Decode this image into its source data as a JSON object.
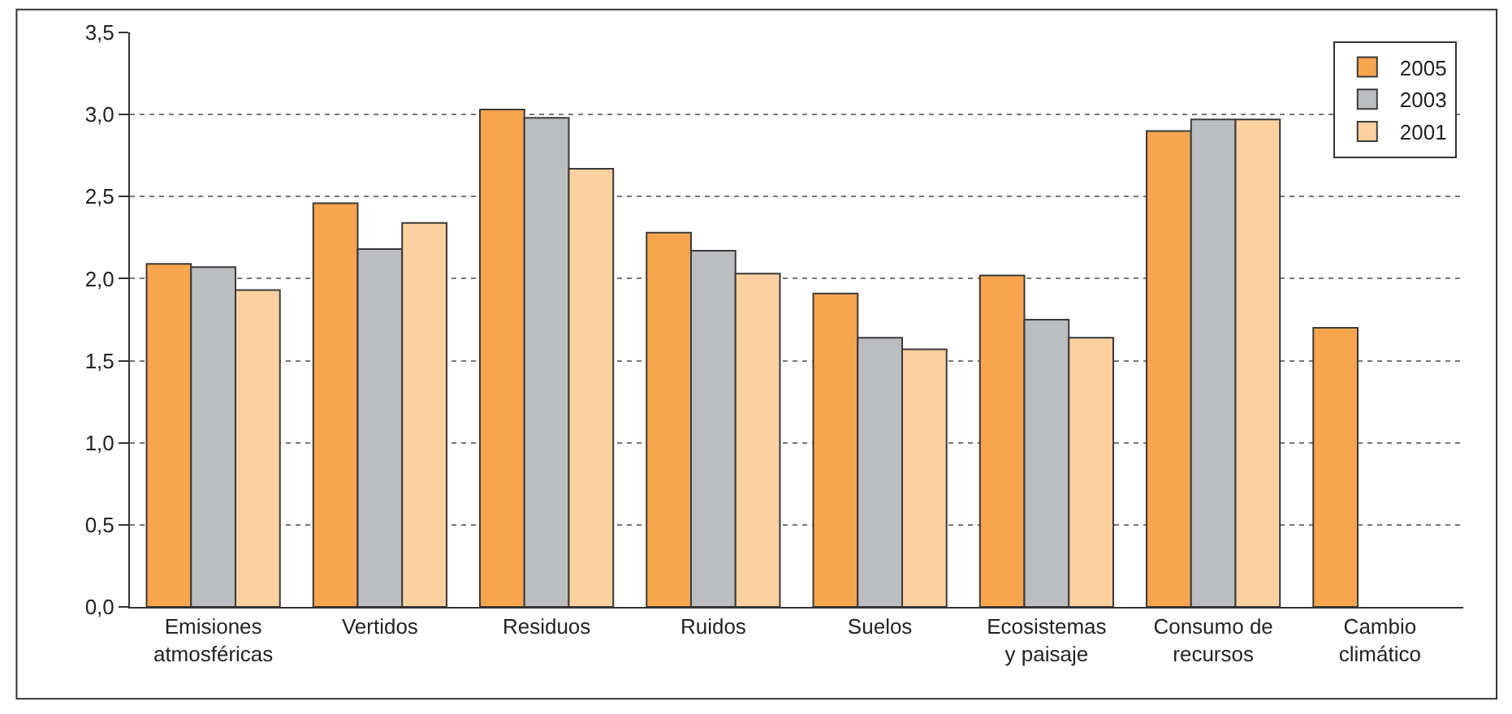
{
  "chart_data": {
    "type": "bar",
    "categories": [
      "Emisiones atmosféricas",
      "Vertidos",
      "Residuos",
      "Ruidos",
      "Suelos",
      "Ecosistemas y paisaje",
      "Consumo de recursos",
      "Cambio climático"
    ],
    "series": [
      {
        "name": "2005",
        "color": "#f7a54f",
        "values": [
          2.09,
          2.46,
          3.03,
          2.28,
          1.91,
          2.02,
          2.9,
          1.7
        ]
      },
      {
        "name": "2003",
        "color": "#bbbdc0",
        "values": [
          2.07,
          2.18,
          2.98,
          2.17,
          1.64,
          1.75,
          2.97,
          null
        ]
      },
      {
        "name": "2001",
        "color": "#fcd19f",
        "values": [
          1.93,
          2.34,
          2.67,
          2.03,
          1.57,
          1.64,
          2.97,
          null
        ]
      }
    ],
    "ylim": [
      0,
      3.5
    ],
    "yticks": [
      {
        "value": 0,
        "label": "0,0"
      },
      {
        "value": 0.5,
        "label": "0,5"
      },
      {
        "value": 1,
        "label": "1,0"
      },
      {
        "value": 1.5,
        "label": "1,5"
      },
      {
        "value": 2,
        "label": "2,0"
      },
      {
        "value": 2.5,
        "label": "2,5"
      },
      {
        "value": 3,
        "label": "3,0"
      },
      {
        "value": 3.5,
        "label": "3,5"
      }
    ],
    "grid": "y",
    "legend": "top right"
  }
}
